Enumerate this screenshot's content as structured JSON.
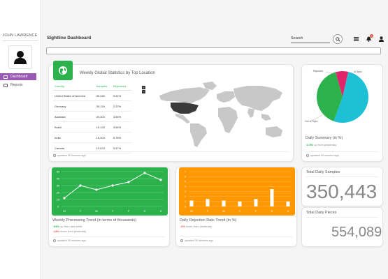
{
  "sidebar": {
    "user_name": "JOHN LAWRENCE",
    "items": [
      {
        "label": "Dashboard",
        "icon": "dashboard-icon",
        "active": true
      },
      {
        "label": "Reports",
        "icon": "reports-icon",
        "active": false
      }
    ]
  },
  "header": {
    "title": "Sightline Dashboard",
    "search_label": "Search",
    "notification_count": "3"
  },
  "stats": {
    "title": "Weekly Global Statistics by Top Location",
    "columns": [
      "Country",
      "Samples",
      "Rejections"
    ],
    "rows": [
      [
        "United States of America",
        "35,345",
        "3.41%"
      ],
      [
        "Germany",
        "30,134",
        "2.22%"
      ],
      [
        "Australia",
        "20,303",
        "3.54%"
      ],
      [
        "Brazil",
        "15,133",
        "3.54%"
      ],
      [
        "India",
        "15,303",
        "5.78%"
      ],
      [
        "Canada",
        "10,023",
        "3.47%"
      ]
    ],
    "zoom_in": "+",
    "zoom_out": "−",
    "updated": "updated 30 minutes ago"
  },
  "summary": {
    "title": "Daily Summary (in %)",
    "trend_value": "2.5%",
    "trend_text": "up from yesterday",
    "updated": "updated 30 minutes ago",
    "slices": [
      {
        "label": "In Spec",
        "value": 52,
        "color": "#1ec0d6"
      },
      {
        "label": "Out of Spec",
        "value": 40,
        "color": "#2bb24c"
      },
      {
        "label": "Rejected",
        "value": 8,
        "color": "#e0256b"
      }
    ]
  },
  "samples": {
    "title": "Total Daily Samples",
    "value": "350,443"
  },
  "pieces": {
    "title": "Total Daily Pieces",
    "value": "554,089"
  },
  "processing": {
    "title": "Weekly Processing Trend (in terms of thousands)",
    "trend_up_value": "34%",
    "trend_up_text": "up from last week",
    "trend_down_value": "14%",
    "trend_down_text": "down from yesterday",
    "updated": "updated 30 minutes ago",
    "bg_color": "#2bb24c"
  },
  "rejection": {
    "title": "Daily Rejection Rate Trend (in %)",
    "trend_value": "2%",
    "trend_text": "down from yesterday",
    "updated": "updated 30 minutes ago",
    "bg_color": "#ff9800"
  },
  "chart_data": [
    {
      "type": "line",
      "categories": [
        "M",
        "T",
        "W",
        "T",
        "F",
        "S",
        "S"
      ],
      "values": [
        12,
        30,
        24,
        30,
        35,
        48,
        38
      ],
      "ylim": [
        0,
        50
      ],
      "yticks": [
        "0",
        "10",
        "20",
        "30",
        "40",
        "50"
      ],
      "grid": true
    },
    {
      "type": "bar",
      "categories": [
        "M",
        "T",
        "W",
        "T",
        "F",
        "S",
        "S"
      ],
      "values": [
        1.2,
        1.5,
        1.2,
        1.0,
        1.5,
        3.5,
        1.0
      ],
      "ylim": [
        0,
        7
      ],
      "yticks": [
        "0",
        "1",
        "2",
        "3",
        "4",
        "5",
        "6",
        "7"
      ],
      "grid": true
    }
  ]
}
